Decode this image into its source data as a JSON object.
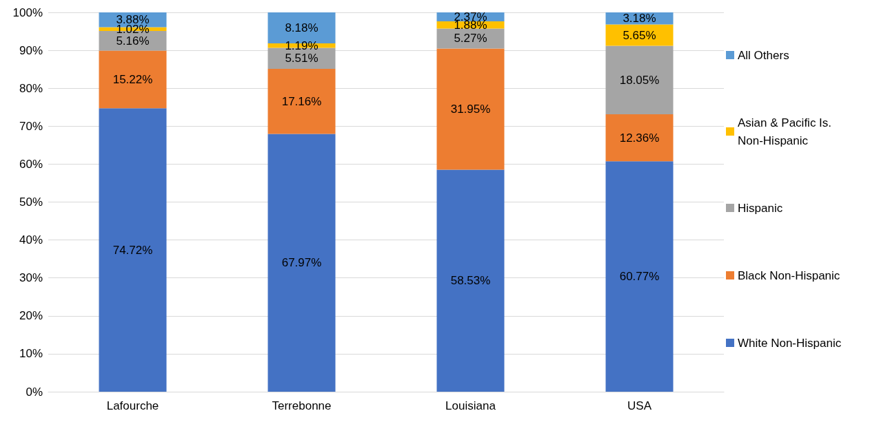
{
  "chart_data": {
    "type": "bar",
    "stacked": true,
    "categories": [
      "Lafourche",
      "Terrebonne",
      "Louisiana",
      "USA"
    ],
    "series": [
      {
        "name": "White Non-Hispanic",
        "color": "#4472c4",
        "values": [
          74.72,
          67.97,
          58.53,
          60.77
        ],
        "value_labels": [
          "74.72%",
          "67.97%",
          "58.53%",
          "60.77%"
        ]
      },
      {
        "name": "Black Non-Hispanic",
        "color": "#ed7d31",
        "values": [
          15.22,
          17.16,
          31.95,
          12.36
        ],
        "value_labels": [
          "15.22%",
          "17.16%",
          "31.95%",
          "12.36%"
        ]
      },
      {
        "name": "Hispanic",
        "color": "#a5a5a5",
        "values": [
          5.16,
          5.51,
          5.27,
          18.05
        ],
        "value_labels": [
          "5.16%",
          "5.51%",
          "5.27%",
          "18.05%"
        ]
      },
      {
        "name": "Asian & Pacific Is. Non-Hispanic",
        "color": "#ffc000",
        "values": [
          1.02,
          1.19,
          1.88,
          5.65
        ],
        "value_labels": [
          "1.02%",
          "1.19%",
          "1.88%",
          "5.65%"
        ]
      },
      {
        "name": "All Others",
        "color": "#5b9bd5",
        "values": [
          3.88,
          8.18,
          2.37,
          3.18
        ],
        "value_labels": [
          "3.88%",
          "8.18%",
          "2.37%",
          "3.18%"
        ]
      }
    ],
    "ylim": [
      0,
      100
    ],
    "yticks": [
      {
        "value": 0,
        "label": "0%"
      },
      {
        "value": 10,
        "label": "10%"
      },
      {
        "value": 20,
        "label": "20%"
      },
      {
        "value": 30,
        "label": "30%"
      },
      {
        "value": 40,
        "label": "40%"
      },
      {
        "value": 50,
        "label": "50%"
      },
      {
        "value": 60,
        "label": "60%"
      },
      {
        "value": 70,
        "label": "70%"
      },
      {
        "value": 80,
        "label": "80%"
      },
      {
        "value": 90,
        "label": "90%"
      },
      {
        "value": 100,
        "label": "100%"
      }
    ],
    "grid": "y",
    "legend": "right"
  }
}
